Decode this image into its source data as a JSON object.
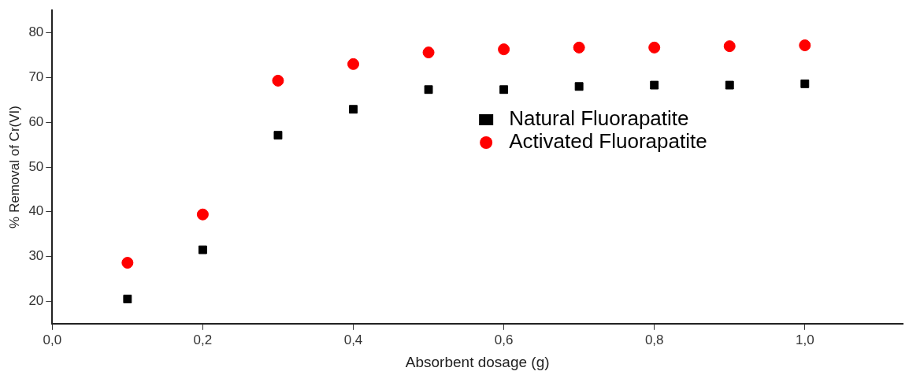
{
  "chart_data": {
    "type": "scatter",
    "xlabel": "Absorbent dosage (g)",
    "ylabel": "% Removal of Cr(VI)",
    "x": [
      0.1,
      0.2,
      0.3,
      0.4,
      0.5,
      0.6,
      0.7,
      0.8,
      0.9,
      1.0
    ],
    "series": [
      {
        "name": "Natural Fluorapatite",
        "color": "#000000",
        "marker": "square",
        "values": [
          20.5,
          31.5,
          57.1,
          62.9,
          67.3,
          67.3,
          68,
          68.3,
          68.3,
          68.6
        ]
      },
      {
        "name": "Activated Fluorapatite",
        "color": "#ff0000",
        "marker": "circle",
        "values": [
          28.6,
          39.4,
          69.3,
          73,
          75.6,
          76.3,
          76.7,
          76.7,
          77,
          77.2
        ]
      }
    ],
    "xlim": [
      0,
      1.13
    ],
    "xticks": [
      {
        "value": 0,
        "label": "0,0"
      },
      {
        "value": 0.2,
        "label": "0,2"
      },
      {
        "value": 0.4,
        "label": "0,4"
      },
      {
        "value": 0.6,
        "label": "0,6"
      },
      {
        "value": 0.8,
        "label": "0,8"
      },
      {
        "value": 1.0,
        "label": "1,0"
      }
    ],
    "ylim": [
      15,
      85
    ],
    "yticks": [
      20,
      30,
      40,
      50,
      60,
      70,
      80
    ],
    "grid": false,
    "legend": "right"
  }
}
